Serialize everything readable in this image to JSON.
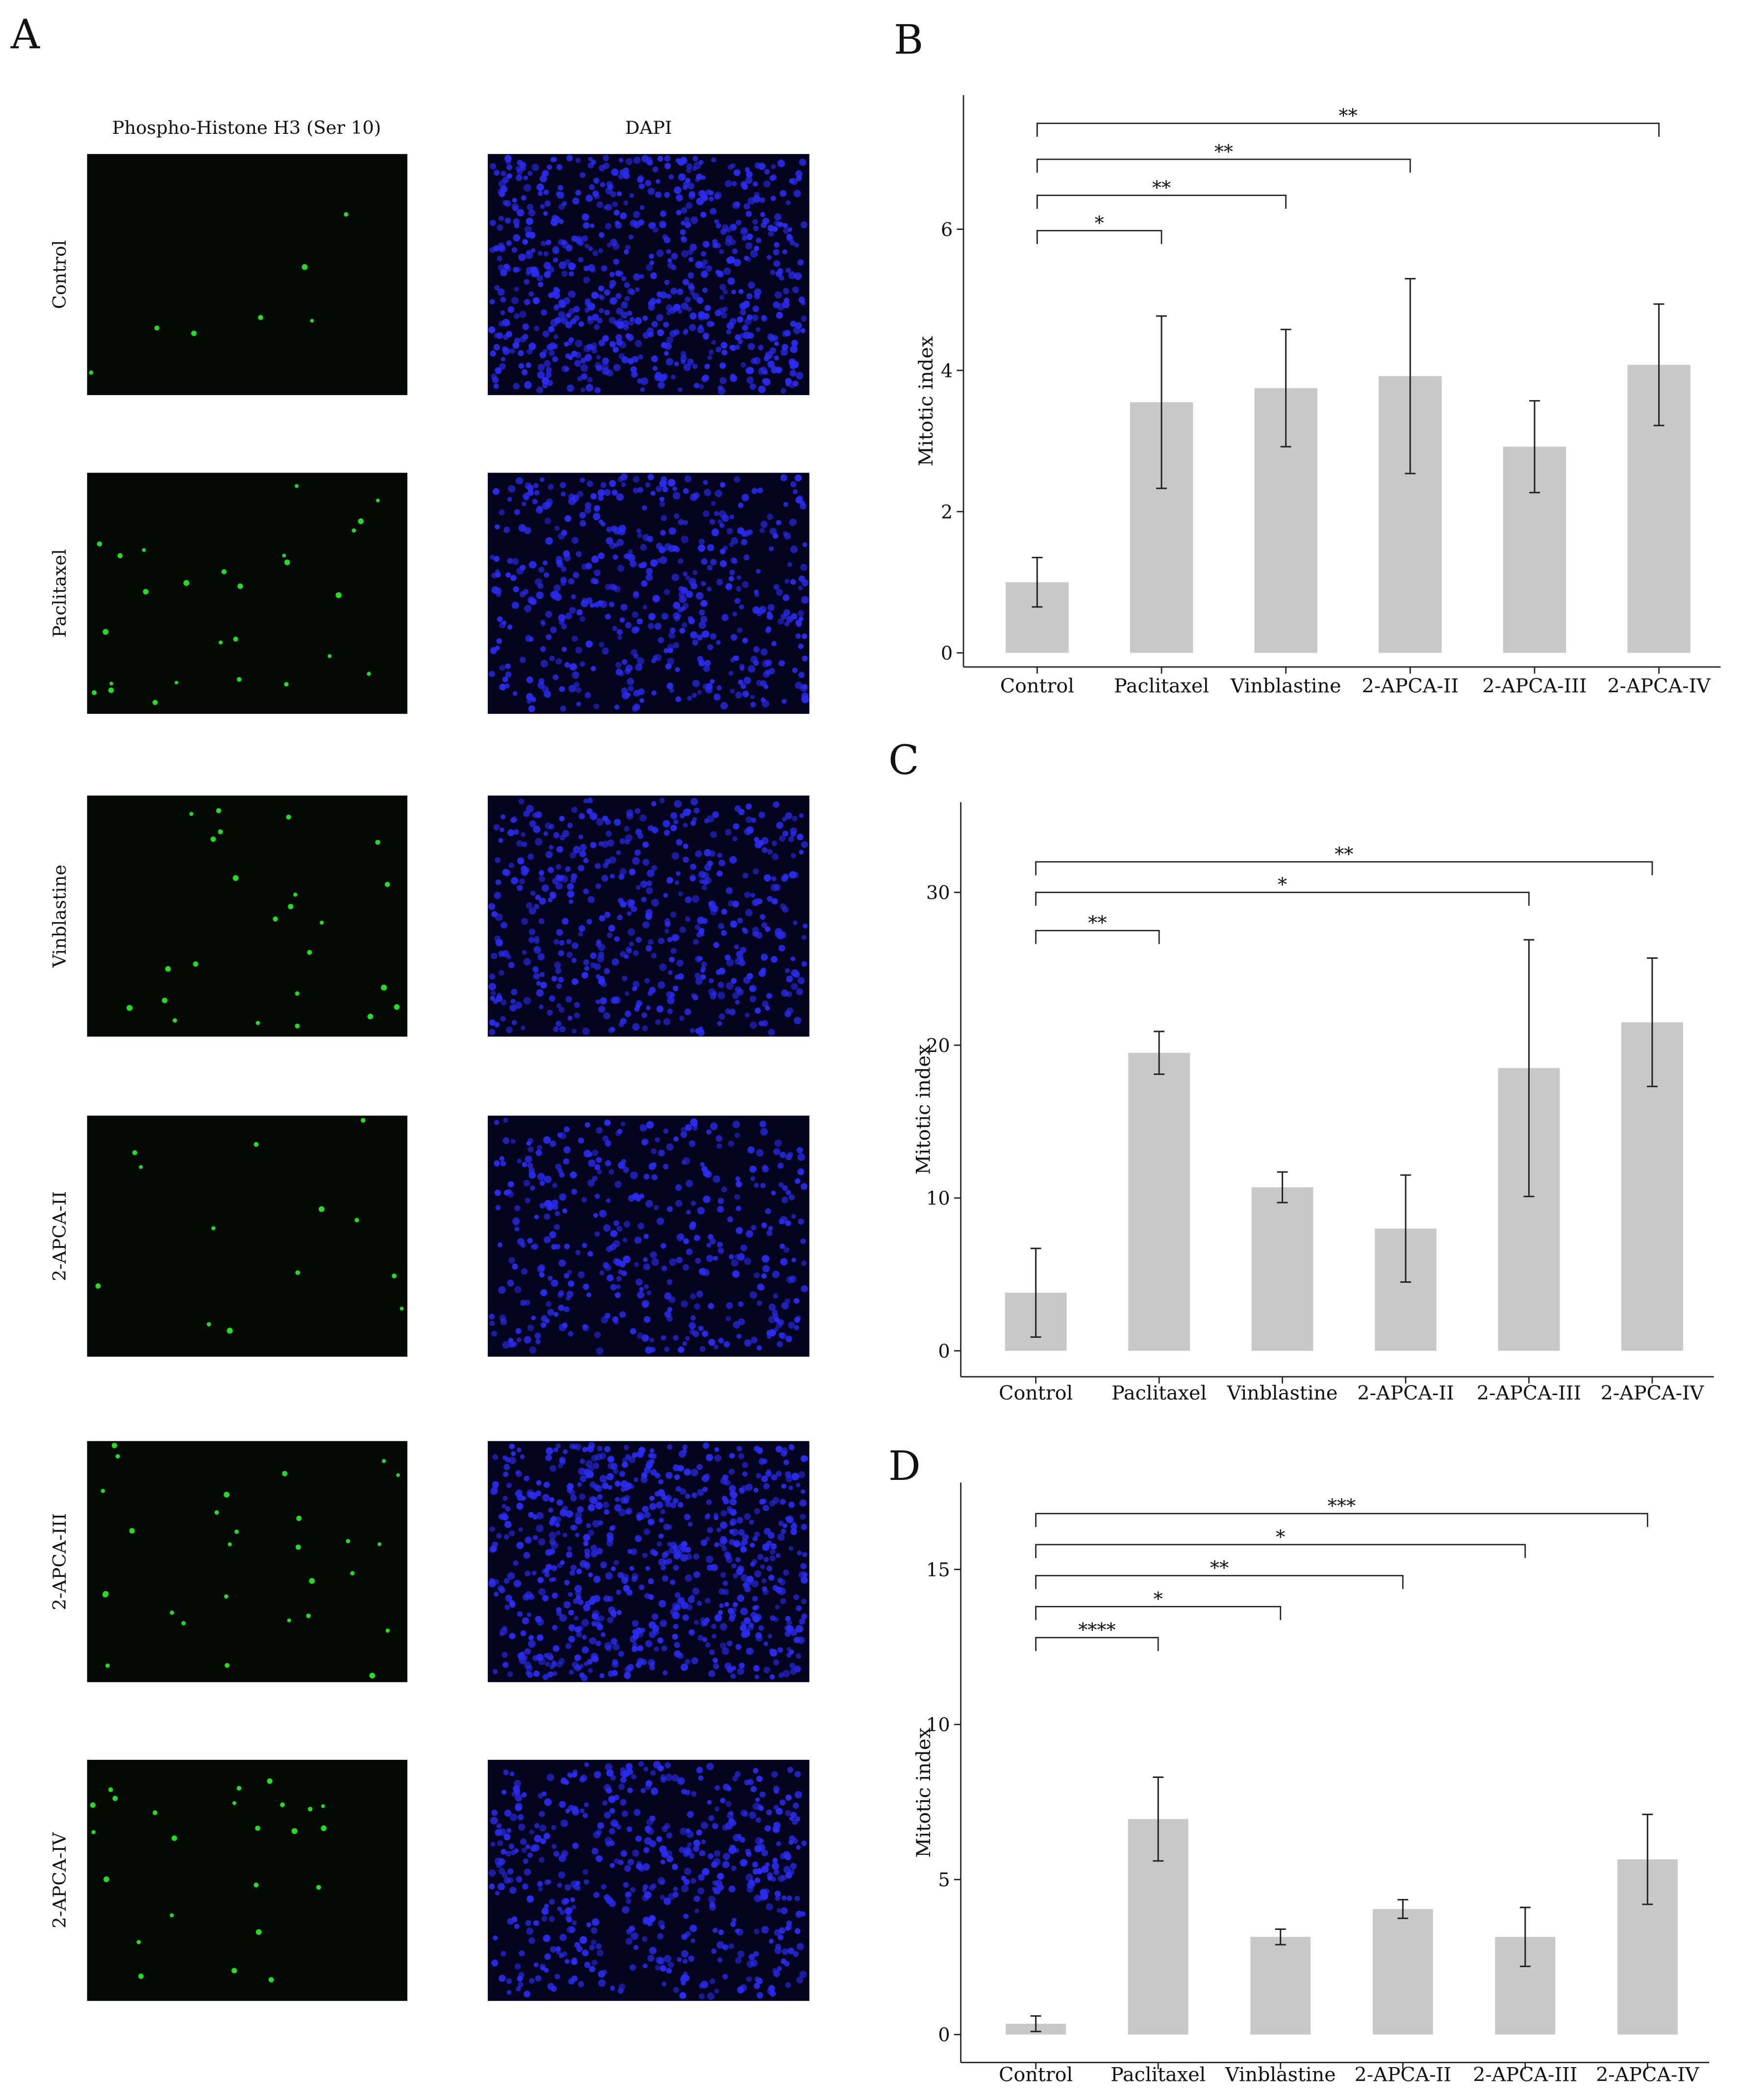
{
  "panel_letters": {
    "a": "A",
    "b": "B",
    "c": "C",
    "d": "D"
  },
  "micro": {
    "column_headers": [
      "Phospho-Histone H3 (Ser 10)",
      "DAPI"
    ],
    "row_labels": [
      "Control",
      "Paclitaxel",
      "Vinblastine",
      "2-APCA-II",
      "2-APCA-III",
      "2-APCA-IV"
    ],
    "colors": {
      "phh3_background": "#020a02",
      "phh3_dot": "#22dd22",
      "dapi_background": "#04041e",
      "dapi_dot": "#2a2cf0"
    }
  },
  "bar_color": "#c8c8c8",
  "chart_data": [
    {
      "panel": "B",
      "type": "bar",
      "categories": [
        "Control",
        "Paclitaxel",
        "Vinblastine",
        "2-APCA-II",
        "2-APCA-III",
        "2-APCA-IV"
      ],
      "values": [
        1.0,
        3.55,
        3.75,
        3.92,
        2.92,
        4.08
      ],
      "error": [
        0.35,
        1.22,
        0.83,
        1.38,
        0.65,
        0.86
      ],
      "ylabel": "Mitotic index",
      "yticks": [
        0,
        2,
        4,
        6
      ],
      "ylim": [
        -0.2,
        7.9
      ],
      "grid": false,
      "significance": [
        {
          "from": 0,
          "to": 1,
          "label": "*",
          "y": 5.98
        },
        {
          "from": 0,
          "to": 2,
          "label": "**",
          "y": 6.48
        },
        {
          "from": 0,
          "to": 3,
          "label": "**",
          "y": 6.99
        },
        {
          "from": 0,
          "to": 5,
          "label": "**",
          "y": 7.5
        }
      ]
    },
    {
      "panel": "C",
      "type": "bar",
      "categories": [
        "Control",
        "Paclitaxel",
        "Vinblastine",
        "2-APCA-II",
        "2-APCA-III",
        "2-APCA-IV"
      ],
      "values": [
        3.8,
        19.5,
        10.7,
        8.0,
        18.5,
        21.5
      ],
      "error": [
        2.9,
        1.4,
        1.0,
        3.5,
        8.4,
        4.2
      ],
      "ylabel": "Mitotic index",
      "yticks": [
        0,
        10,
        20,
        30
      ],
      "ylim": [
        -1.7,
        35.9
      ],
      "grid": false,
      "significance": [
        {
          "from": 0,
          "to": 1,
          "label": "**",
          "y": 27.5
        },
        {
          "from": 0,
          "to": 4,
          "label": "*",
          "y": 30.0
        },
        {
          "from": 0,
          "to": 5,
          "label": "**",
          "y": 32.0
        }
      ]
    },
    {
      "panel": "D",
      "type": "bar",
      "categories": [
        "Control",
        "Paclitaxel",
        "Vinblastine",
        "2-APCA-II",
        "2-APCA-III",
        "2-APCA-IV"
      ],
      "values": [
        0.35,
        6.95,
        3.15,
        4.05,
        3.15,
        5.65
      ],
      "error": [
        0.25,
        1.35,
        0.25,
        0.3,
        0.95,
        1.45
      ],
      "ylabel": "Mitotic index",
      "yticks": [
        0,
        5,
        10,
        15
      ],
      "ylim": [
        -0.9,
        17.8
      ],
      "grid": false,
      "significance": [
        {
          "from": 0,
          "to": 1,
          "label": "****",
          "y": 12.8
        },
        {
          "from": 0,
          "to": 2,
          "label": "*",
          "y": 13.8
        },
        {
          "from": 0,
          "to": 3,
          "label": "**",
          "y": 14.8
        },
        {
          "from": 0,
          "to": 4,
          "label": "*",
          "y": 15.8
        },
        {
          "from": 0,
          "to": 5,
          "label": "***",
          "y": 16.8
        }
      ]
    }
  ]
}
